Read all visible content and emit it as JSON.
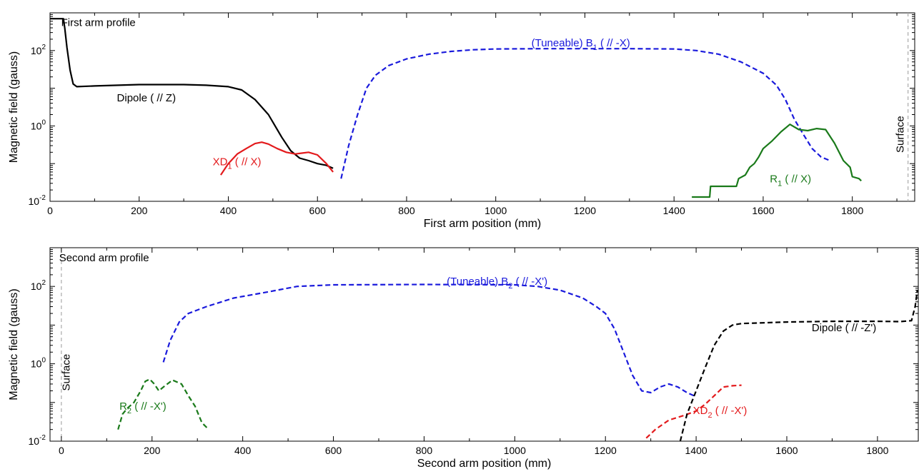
{
  "chart_data": [
    {
      "type": "line",
      "title": "",
      "xlabel": "First arm position (mm)",
      "ylabel": "Magnetic field (gauss)",
      "xlim": [
        0,
        1940
      ],
      "ylim": [
        0.01,
        1000
      ],
      "yscale": "log",
      "xticks": [
        0,
        200,
        400,
        600,
        800,
        1000,
        1200,
        1400,
        1600,
        1800
      ],
      "yticks": [
        {
          "value": 0.01,
          "base": "10",
          "exp": "-2"
        },
        {
          "value": 1,
          "base": "10",
          "exp": "0"
        },
        {
          "value": 100,
          "base": "10",
          "exp": "2"
        }
      ],
      "grid": false,
      "annotations": [
        {
          "text": "First arm profile",
          "x": 25,
          "y": 450
        },
        {
          "text": "Surface",
          "x": 1915,
          "y": 0.6,
          "rotated": true
        }
      ],
      "reference_lines": [
        {
          "x": 1925,
          "style": "dashed",
          "color": "#aaaaaa"
        }
      ],
      "series": [
        {
          "label": {
            "main": "Dipole ( // Z)",
            "sub": ""
          },
          "label_at": [
            150,
            4.5
          ],
          "color": "#000000",
          "dashed": false,
          "points": [
            [
              0,
              700
            ],
            [
              30,
              700
            ],
            [
              33,
              400
            ],
            [
              38,
              120
            ],
            [
              45,
              30
            ],
            [
              52,
              13
            ],
            [
              60,
              11
            ],
            [
              100,
              11.5
            ],
            [
              200,
              12.5
            ],
            [
              300,
              12.5
            ],
            [
              350,
              12
            ],
            [
              400,
              11
            ],
            [
              430,
              9
            ],
            [
              460,
              5
            ],
            [
              490,
              2
            ],
            [
              520,
              0.5
            ],
            [
              540,
              0.22
            ],
            [
              560,
              0.14
            ],
            [
              580,
              0.12
            ],
            [
              600,
              0.1
            ],
            [
              620,
              0.09
            ],
            [
              635,
              0.075
            ]
          ]
        },
        {
          "label": {
            "main": "XD",
            "sub": "1",
            "rest": " ( // X)"
          },
          "label_at": [
            365,
            0.09
          ],
          "color": "#e31a1c",
          "dashed": false,
          "points": [
            [
              383,
              0.05
            ],
            [
              400,
              0.1
            ],
            [
              420,
              0.18
            ],
            [
              440,
              0.25
            ],
            [
              460,
              0.34
            ],
            [
              475,
              0.37
            ],
            [
              490,
              0.33
            ],
            [
              510,
              0.25
            ],
            [
              530,
              0.2
            ],
            [
              550,
              0.18
            ],
            [
              565,
              0.19
            ],
            [
              580,
              0.2
            ],
            [
              600,
              0.17
            ],
            [
              620,
              0.1
            ],
            [
              635,
              0.06
            ]
          ]
        },
        {
          "label": {
            "main": "(Tuneable) B",
            "sub": "1",
            "rest": " ( // -X)"
          },
          "label_at": [
            1080,
            130
          ],
          "color": "#1a1adc",
          "dashed": true,
          "points": [
            [
              653,
              0.04
            ],
            [
              670,
              0.3
            ],
            [
              690,
              2
            ],
            [
              710,
              10
            ],
            [
              730,
              22
            ],
            [
              760,
              40
            ],
            [
              800,
              60
            ],
            [
              850,
              80
            ],
            [
              900,
              95
            ],
            [
              950,
              105
            ],
            [
              1000,
              110
            ],
            [
              1100,
              112
            ],
            [
              1200,
              112
            ],
            [
              1300,
              112
            ],
            [
              1400,
              110
            ],
            [
              1450,
              100
            ],
            [
              1500,
              80
            ],
            [
              1550,
              50
            ],
            [
              1600,
              25
            ],
            [
              1630,
              12
            ],
            [
              1650,
              5
            ],
            [
              1670,
              1.5
            ],
            [
              1690,
              0.6
            ],
            [
              1710,
              0.25
            ],
            [
              1730,
              0.15
            ],
            [
              1750,
              0.12
            ]
          ]
        },
        {
          "label": {
            "main": "R",
            "sub": "1",
            "rest": " ( // X)"
          },
          "label_at": [
            1615,
            0.032
          ],
          "color": "#1a7a1a",
          "dashed": false,
          "points": [
            [
              1440,
              0.013
            ],
            [
              1480,
              0.013
            ],
            [
              1482,
              0.025
            ],
            [
              1540,
              0.025
            ],
            [
              1545,
              0.04
            ],
            [
              1560,
              0.05
            ],
            [
              1570,
              0.08
            ],
            [
              1580,
              0.1
            ],
            [
              1590,
              0.15
            ],
            [
              1600,
              0.25
            ],
            [
              1620,
              0.4
            ],
            [
              1640,
              0.7
            ],
            [
              1660,
              1.1
            ],
            [
              1680,
              0.8
            ],
            [
              1700,
              0.75
            ],
            [
              1720,
              0.85
            ],
            [
              1740,
              0.8
            ],
            [
              1760,
              0.35
            ],
            [
              1780,
              0.12
            ],
            [
              1795,
              0.08
            ],
            [
              1800,
              0.045
            ],
            [
              1815,
              0.04
            ],
            [
              1820,
              0.035
            ]
          ]
        }
      ]
    },
    {
      "type": "line",
      "title": "",
      "xlabel": "Second arm position (mm)",
      "ylabel": "Magnetic field (gauss)",
      "xlim": [
        -25,
        1890
      ],
      "ylim": [
        0.01,
        1000
      ],
      "yscale": "log",
      "xticks": [
        0,
        200,
        400,
        600,
        800,
        1000,
        1200,
        1400,
        1600,
        1800
      ],
      "yticks": [
        {
          "value": 0.01,
          "base": "10",
          "exp": "-2"
        },
        {
          "value": 1,
          "base": "10",
          "exp": "0"
        },
        {
          "value": 100,
          "base": "10",
          "exp": "2"
        }
      ],
      "grid": false,
      "annotations": [
        {
          "text": "Second arm profile",
          "x": -5,
          "y": 450
        },
        {
          "text": "Surface",
          "x": 18,
          "y": 0.6,
          "rotated": true
        }
      ],
      "reference_lines": [
        {
          "x": 0,
          "style": "dashed",
          "color": "#aaaaaa"
        }
      ],
      "series": [
        {
          "label": {
            "main": "R",
            "sub": "2",
            "rest": " ( // -X')"
          },
          "label_at": [
            128,
            0.065
          ],
          "color": "#1a7a1a",
          "dashed": true,
          "points": [
            [
              125,
              0.02
            ],
            [
              135,
              0.05
            ],
            [
              145,
              0.07
            ],
            [
              160,
              0.1
            ],
            [
              175,
              0.2
            ],
            [
              185,
              0.35
            ],
            [
              195,
              0.4
            ],
            [
              205,
              0.3
            ],
            [
              215,
              0.2
            ],
            [
              225,
              0.25
            ],
            [
              245,
              0.38
            ],
            [
              265,
              0.3
            ],
            [
              280,
              0.15
            ],
            [
              295,
              0.08
            ],
            [
              310,
              0.03
            ],
            [
              325,
              0.02
            ]
          ]
        },
        {
          "label": {
            "main": "(Tuneable) B",
            "sub": "2",
            "rest": " ( // -X')"
          },
          "label_at": [
            850,
            110
          ],
          "color": "#1a1adc",
          "dashed": true,
          "points": [
            [
              225,
              1.1
            ],
            [
              240,
              4
            ],
            [
              260,
              12
            ],
            [
              280,
              20
            ],
            [
              320,
              30
            ],
            [
              380,
              50
            ],
            [
              450,
              70
            ],
            [
              520,
              100
            ],
            [
              600,
              110
            ],
            [
              800,
              112
            ],
            [
              1000,
              110
            ],
            [
              1050,
              100
            ],
            [
              1100,
              80
            ],
            [
              1150,
              50
            ],
            [
              1180,
              30
            ],
            [
              1200,
              20
            ],
            [
              1220,
              8
            ],
            [
              1240,
              2
            ],
            [
              1260,
              0.5
            ],
            [
              1280,
              0.2
            ],
            [
              1300,
              0.18
            ],
            [
              1320,
              0.25
            ],
            [
              1340,
              0.3
            ],
            [
              1360,
              0.25
            ],
            [
              1380,
              0.18
            ],
            [
              1395,
              0.15
            ]
          ]
        },
        {
          "label": {
            "main": "XD",
            "sub": "2",
            "rest": " ( // -X')"
          },
          "label_at": [
            1393,
            0.05
          ],
          "color": "#e31a1c",
          "dashed": true,
          "points": [
            [
              1290,
              0.012
            ],
            [
              1310,
              0.02
            ],
            [
              1340,
              0.035
            ],
            [
              1370,
              0.045
            ],
            [
              1400,
              0.06
            ],
            [
              1420,
              0.09
            ],
            [
              1440,
              0.15
            ],
            [
              1460,
              0.25
            ],
            [
              1480,
              0.27
            ],
            [
              1500,
              0.28
            ]
          ]
        },
        {
          "label": {
            "main": "Dipole ( // -Z')",
            "sub": ""
          },
          "label_at": [
            1655,
            7
          ],
          "color": "#000000",
          "dashed": true,
          "points": [
            [
              1365,
              0.01
            ],
            [
              1380,
              0.05
            ],
            [
              1400,
              0.2
            ],
            [
              1420,
              0.8
            ],
            [
              1440,
              3
            ],
            [
              1460,
              7
            ],
            [
              1480,
              10
            ],
            [
              1500,
              11
            ],
            [
              1600,
              12
            ],
            [
              1700,
              12.5
            ],
            [
              1800,
              12.5
            ],
            [
              1850,
              12.3
            ],
            [
              1875,
              13
            ],
            [
              1883,
              30
            ],
            [
              1888,
              80
            ]
          ]
        }
      ]
    }
  ]
}
